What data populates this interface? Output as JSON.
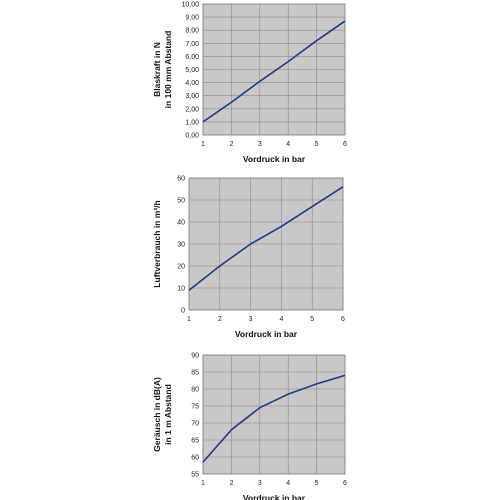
{
  "colors": {
    "plot_bg": "#c8c8c8",
    "grid": "#8a8a8a",
    "line": "#1f3a8a",
    "frame": "#7a7a7a"
  },
  "chart_data": [
    {
      "type": "line",
      "xlabel": "Vordruck in bar",
      "ylabel_lines": [
        "Blaskraft in N",
        "in 100 mm Abstand"
      ],
      "x": [
        1,
        2,
        3,
        4,
        5,
        6
      ],
      "y": [
        1.0,
        2.5,
        4.1,
        5.6,
        7.2,
        8.7
      ],
      "xlim": [
        1,
        6
      ],
      "ylim": [
        0,
        10
      ],
      "x_ticks": [
        "1",
        "2",
        "3",
        "4",
        "5",
        "6"
      ],
      "y_ticks": [
        "0,00",
        "1,00",
        "2,00",
        "3,00",
        "4,00",
        "5,00",
        "6,00",
        "7,00",
        "8,00",
        "9,00",
        "10,00"
      ],
      "grid": true
    },
    {
      "type": "line",
      "xlabel": "Vordruck in bar",
      "ylabel_lines": [
        "Luftverbrauch in m³/h"
      ],
      "x": [
        1,
        2,
        3,
        4,
        5,
        6
      ],
      "y": [
        9,
        20,
        30,
        38,
        47,
        56
      ],
      "xlim": [
        1,
        6
      ],
      "ylim": [
        0,
        60
      ],
      "x_ticks": [
        "1",
        "2",
        "3",
        "4",
        "5",
        "6"
      ],
      "y_ticks": [
        "0",
        "10",
        "20",
        "30",
        "40",
        "50",
        "60"
      ],
      "grid": true
    },
    {
      "type": "line",
      "xlabel": "Vordruck in bar",
      "ylabel_lines": [
        "Geräusch in dB(A)",
        "in 1 m Abstand"
      ],
      "x": [
        1,
        2,
        3,
        4,
        5,
        6
      ],
      "y": [
        58.5,
        68,
        74.5,
        78.5,
        81.5,
        84
      ],
      "xlim": [
        1,
        6
      ],
      "ylim": [
        55,
        90
      ],
      "x_ticks": [
        "1",
        "2",
        "3",
        "4",
        "5",
        "6"
      ],
      "y_ticks": [
        "55",
        "60",
        "65",
        "70",
        "75",
        "80",
        "85",
        "90"
      ],
      "grid": true
    }
  ]
}
